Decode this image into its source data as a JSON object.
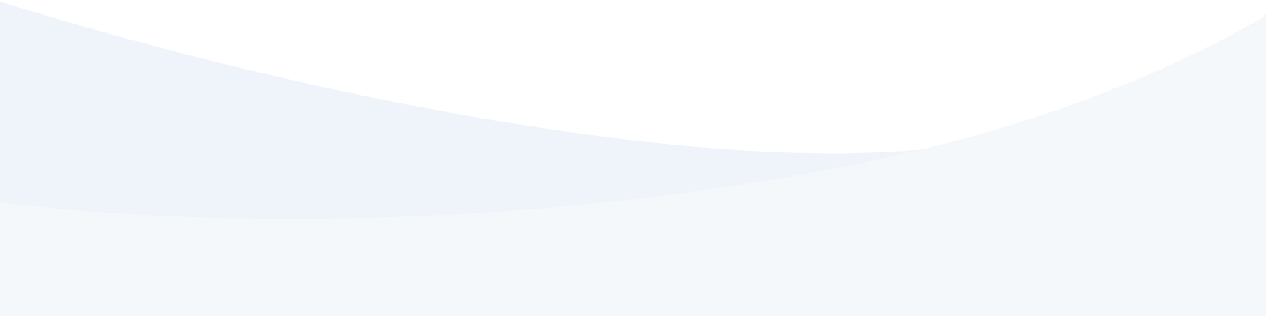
{
  "colors": {
    "background": "#ffffff",
    "back_wave": "#eff3fa",
    "front_wave": "#f5f8fb"
  }
}
